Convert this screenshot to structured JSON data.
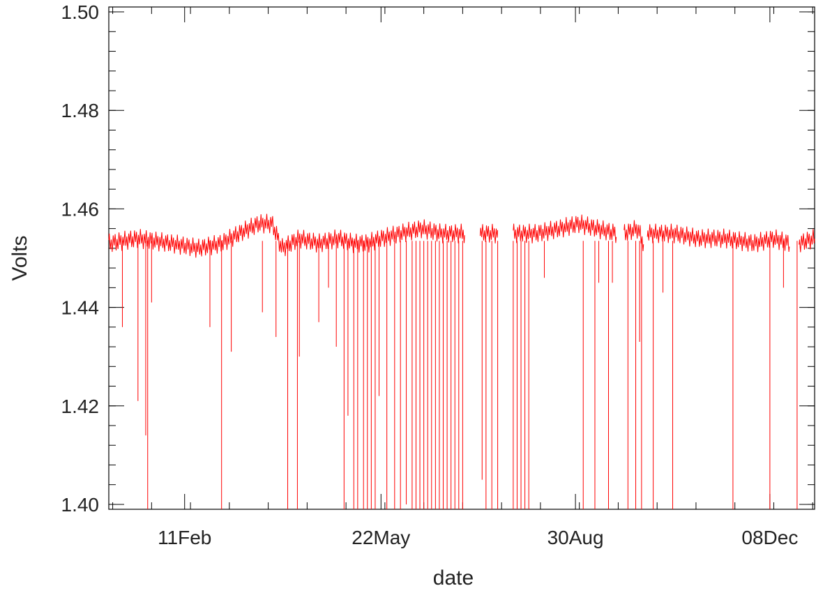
{
  "chart_data": {
    "type": "line",
    "title": "",
    "xlabel": "date",
    "ylabel": "Volts",
    "xlim": [
      "2000-01-03",
      "2000-12-31"
    ],
    "ylim": [
      1.399,
      1.501
    ],
    "grid": false,
    "legend": "none",
    "x_tick_labels": [
      {
        "label": "11Feb",
        "date": "2000-02-11"
      },
      {
        "label": "22May",
        "date": "2000-05-22"
      },
      {
        "label": "30Aug",
        "date": "2000-08-30"
      },
      {
        "label": "08Dec",
        "date": "2000-12-08"
      }
    ],
    "y_tick_labels": [
      "1.40",
      "1.42",
      "1.44",
      "1.46",
      "1.48",
      "1.50"
    ],
    "y_ticks": [
      1.4,
      1.42,
      1.44,
      1.46,
      1.48,
      1.5
    ],
    "series": [
      {
        "color": "#ff0000",
        "baseline_segments": [
          {
            "x": [
              "2000-01-03",
              "2000-01-18",
              "2000-02-04",
              "2000-02-18",
              "2000-03-01",
              "2000-03-10",
              "2000-03-20",
              "2000-03-27",
              "2000-04-01",
              "2000-04-10",
              "2000-04-20",
              "2000-04-30",
              "2000-05-08",
              "2000-05-15",
              "2000-05-22",
              "2000-06-01",
              "2000-06-12",
              "2000-06-22",
              "2000-06-30",
              "2000-07-04"
            ],
            "y": [
              1.453,
              1.454,
              1.453,
              1.452,
              1.453,
              1.455,
              1.457,
              1.457,
              1.452,
              1.454,
              1.453,
              1.454,
              1.453,
              1.453,
              1.454,
              1.455,
              1.456,
              1.455,
              1.455,
              1.455
            ]
          },
          {
            "x": [
              "2000-07-12",
              "2000-07-17",
              "2000-07-21"
            ],
            "y": [
              1.455,
              1.455,
              1.455
            ]
          },
          {
            "x": [
              "2000-07-29",
              "2000-08-10",
              "2000-08-22",
              "2000-09-01",
              "2000-09-10",
              "2000-09-20"
            ],
            "y": [
              1.455,
              1.455,
              1.456,
              1.457,
              1.456,
              1.455
            ]
          },
          {
            "x": [
              "2000-09-24",
              "2000-10-01",
              "2000-10-04"
            ],
            "y": [
              1.455,
              1.456,
              1.453
            ]
          },
          {
            "x": [
              "2000-10-06",
              "2000-10-20",
              "2000-11-01",
              "2000-11-15",
              "2000-11-30",
              "2000-12-10",
              "2000-12-18"
            ],
            "y": [
              1.455,
              1.455,
              1.454,
              1.454,
              1.453,
              1.454,
              1.453
            ]
          },
          {
            "x": [
              "2000-12-23",
              "2000-12-31"
            ],
            "y": [
              1.453,
              1.454
            ]
          }
        ],
        "dips": [
          {
            "x": "2000-01-10",
            "y": 1.436
          },
          {
            "x": "2000-01-18",
            "y": 1.421
          },
          {
            "x": "2000-01-22",
            "y": 1.414
          },
          {
            "x": "2000-01-23",
            "y": 1.399
          },
          {
            "x": "2000-01-25",
            "y": 1.441
          },
          {
            "x": "2000-02-24",
            "y": 1.436
          },
          {
            "x": "2000-03-01",
            "y": 1.399
          },
          {
            "x": "2000-03-06",
            "y": 1.431
          },
          {
            "x": "2000-03-22",
            "y": 1.439
          },
          {
            "x": "2000-03-29",
            "y": 1.434
          },
          {
            "x": "2000-04-04",
            "y": 1.399
          },
          {
            "x": "2000-04-09",
            "y": 1.399
          },
          {
            "x": "2000-04-10",
            "y": 1.43
          },
          {
            "x": "2000-04-20",
            "y": 1.437
          },
          {
            "x": "2000-04-25",
            "y": 1.444
          },
          {
            "x": "2000-04-29",
            "y": 1.432
          },
          {
            "x": "2000-05-03",
            "y": 1.399
          },
          {
            "x": "2000-05-05",
            "y": 1.418
          },
          {
            "x": "2000-05-08",
            "y": 1.399
          },
          {
            "x": "2000-05-10",
            "y": 1.399
          },
          {
            "x": "2000-05-13",
            "y": 1.399
          },
          {
            "x": "2000-05-15",
            "y": 1.399
          },
          {
            "x": "2000-05-17",
            "y": 1.399
          },
          {
            "x": "2000-05-19",
            "y": 1.399
          },
          {
            "x": "2000-05-21",
            "y": 1.422
          },
          {
            "x": "2000-05-25",
            "y": 1.399
          },
          {
            "x": "2000-05-29",
            "y": 1.399
          },
          {
            "x": "2000-06-01",
            "y": 1.399
          },
          {
            "x": "2000-06-04",
            "y": 1.4
          },
          {
            "x": "2000-06-07",
            "y": 1.399
          },
          {
            "x": "2000-06-09",
            "y": 1.399
          },
          {
            "x": "2000-06-11",
            "y": 1.399
          },
          {
            "x": "2000-06-13",
            "y": 1.399
          },
          {
            "x": "2000-06-15",
            "y": 1.399
          },
          {
            "x": "2000-06-17",
            "y": 1.399
          },
          {
            "x": "2000-06-19",
            "y": 1.399
          },
          {
            "x": "2000-06-21",
            "y": 1.399
          },
          {
            "x": "2000-06-23",
            "y": 1.399
          },
          {
            "x": "2000-06-25",
            "y": 1.399
          },
          {
            "x": "2000-06-27",
            "y": 1.399
          },
          {
            "x": "2000-06-29",
            "y": 1.399
          },
          {
            "x": "2000-07-01",
            "y": 1.399
          },
          {
            "x": "2000-07-03",
            "y": 1.399
          },
          {
            "x": "2000-07-13",
            "y": 1.405
          },
          {
            "x": "2000-07-15",
            "y": 1.399
          },
          {
            "x": "2000-07-18",
            "y": 1.399
          },
          {
            "x": "2000-07-21",
            "y": 1.399
          },
          {
            "x": "2000-07-29",
            "y": 1.399
          },
          {
            "x": "2000-07-31",
            "y": 1.399
          },
          {
            "x": "2000-08-02",
            "y": 1.399
          },
          {
            "x": "2000-08-04",
            "y": 1.399
          },
          {
            "x": "2000-08-06",
            "y": 1.399
          },
          {
            "x": "2000-08-14",
            "y": 1.446
          },
          {
            "x": "2000-09-03",
            "y": 1.399
          },
          {
            "x": "2000-09-09",
            "y": 1.399
          },
          {
            "x": "2000-09-11",
            "y": 1.445
          },
          {
            "x": "2000-09-16",
            "y": 1.399
          },
          {
            "x": "2000-09-18",
            "y": 1.445
          },
          {
            "x": "2000-09-26",
            "y": 1.399
          },
          {
            "x": "2000-09-30",
            "y": 1.399
          },
          {
            "x": "2000-10-02",
            "y": 1.433
          },
          {
            "x": "2000-10-03",
            "y": 1.399
          },
          {
            "x": "2000-10-09",
            "y": 1.399
          },
          {
            "x": "2000-10-14",
            "y": 1.443
          },
          {
            "x": "2000-10-19",
            "y": 1.399
          },
          {
            "x": "2000-11-19",
            "y": 1.399
          },
          {
            "x": "2000-12-08",
            "y": 1.399
          },
          {
            "x": "2000-12-15",
            "y": 1.444
          },
          {
            "x": "2000-12-22",
            "y": 1.399
          }
        ]
      }
    ]
  }
}
